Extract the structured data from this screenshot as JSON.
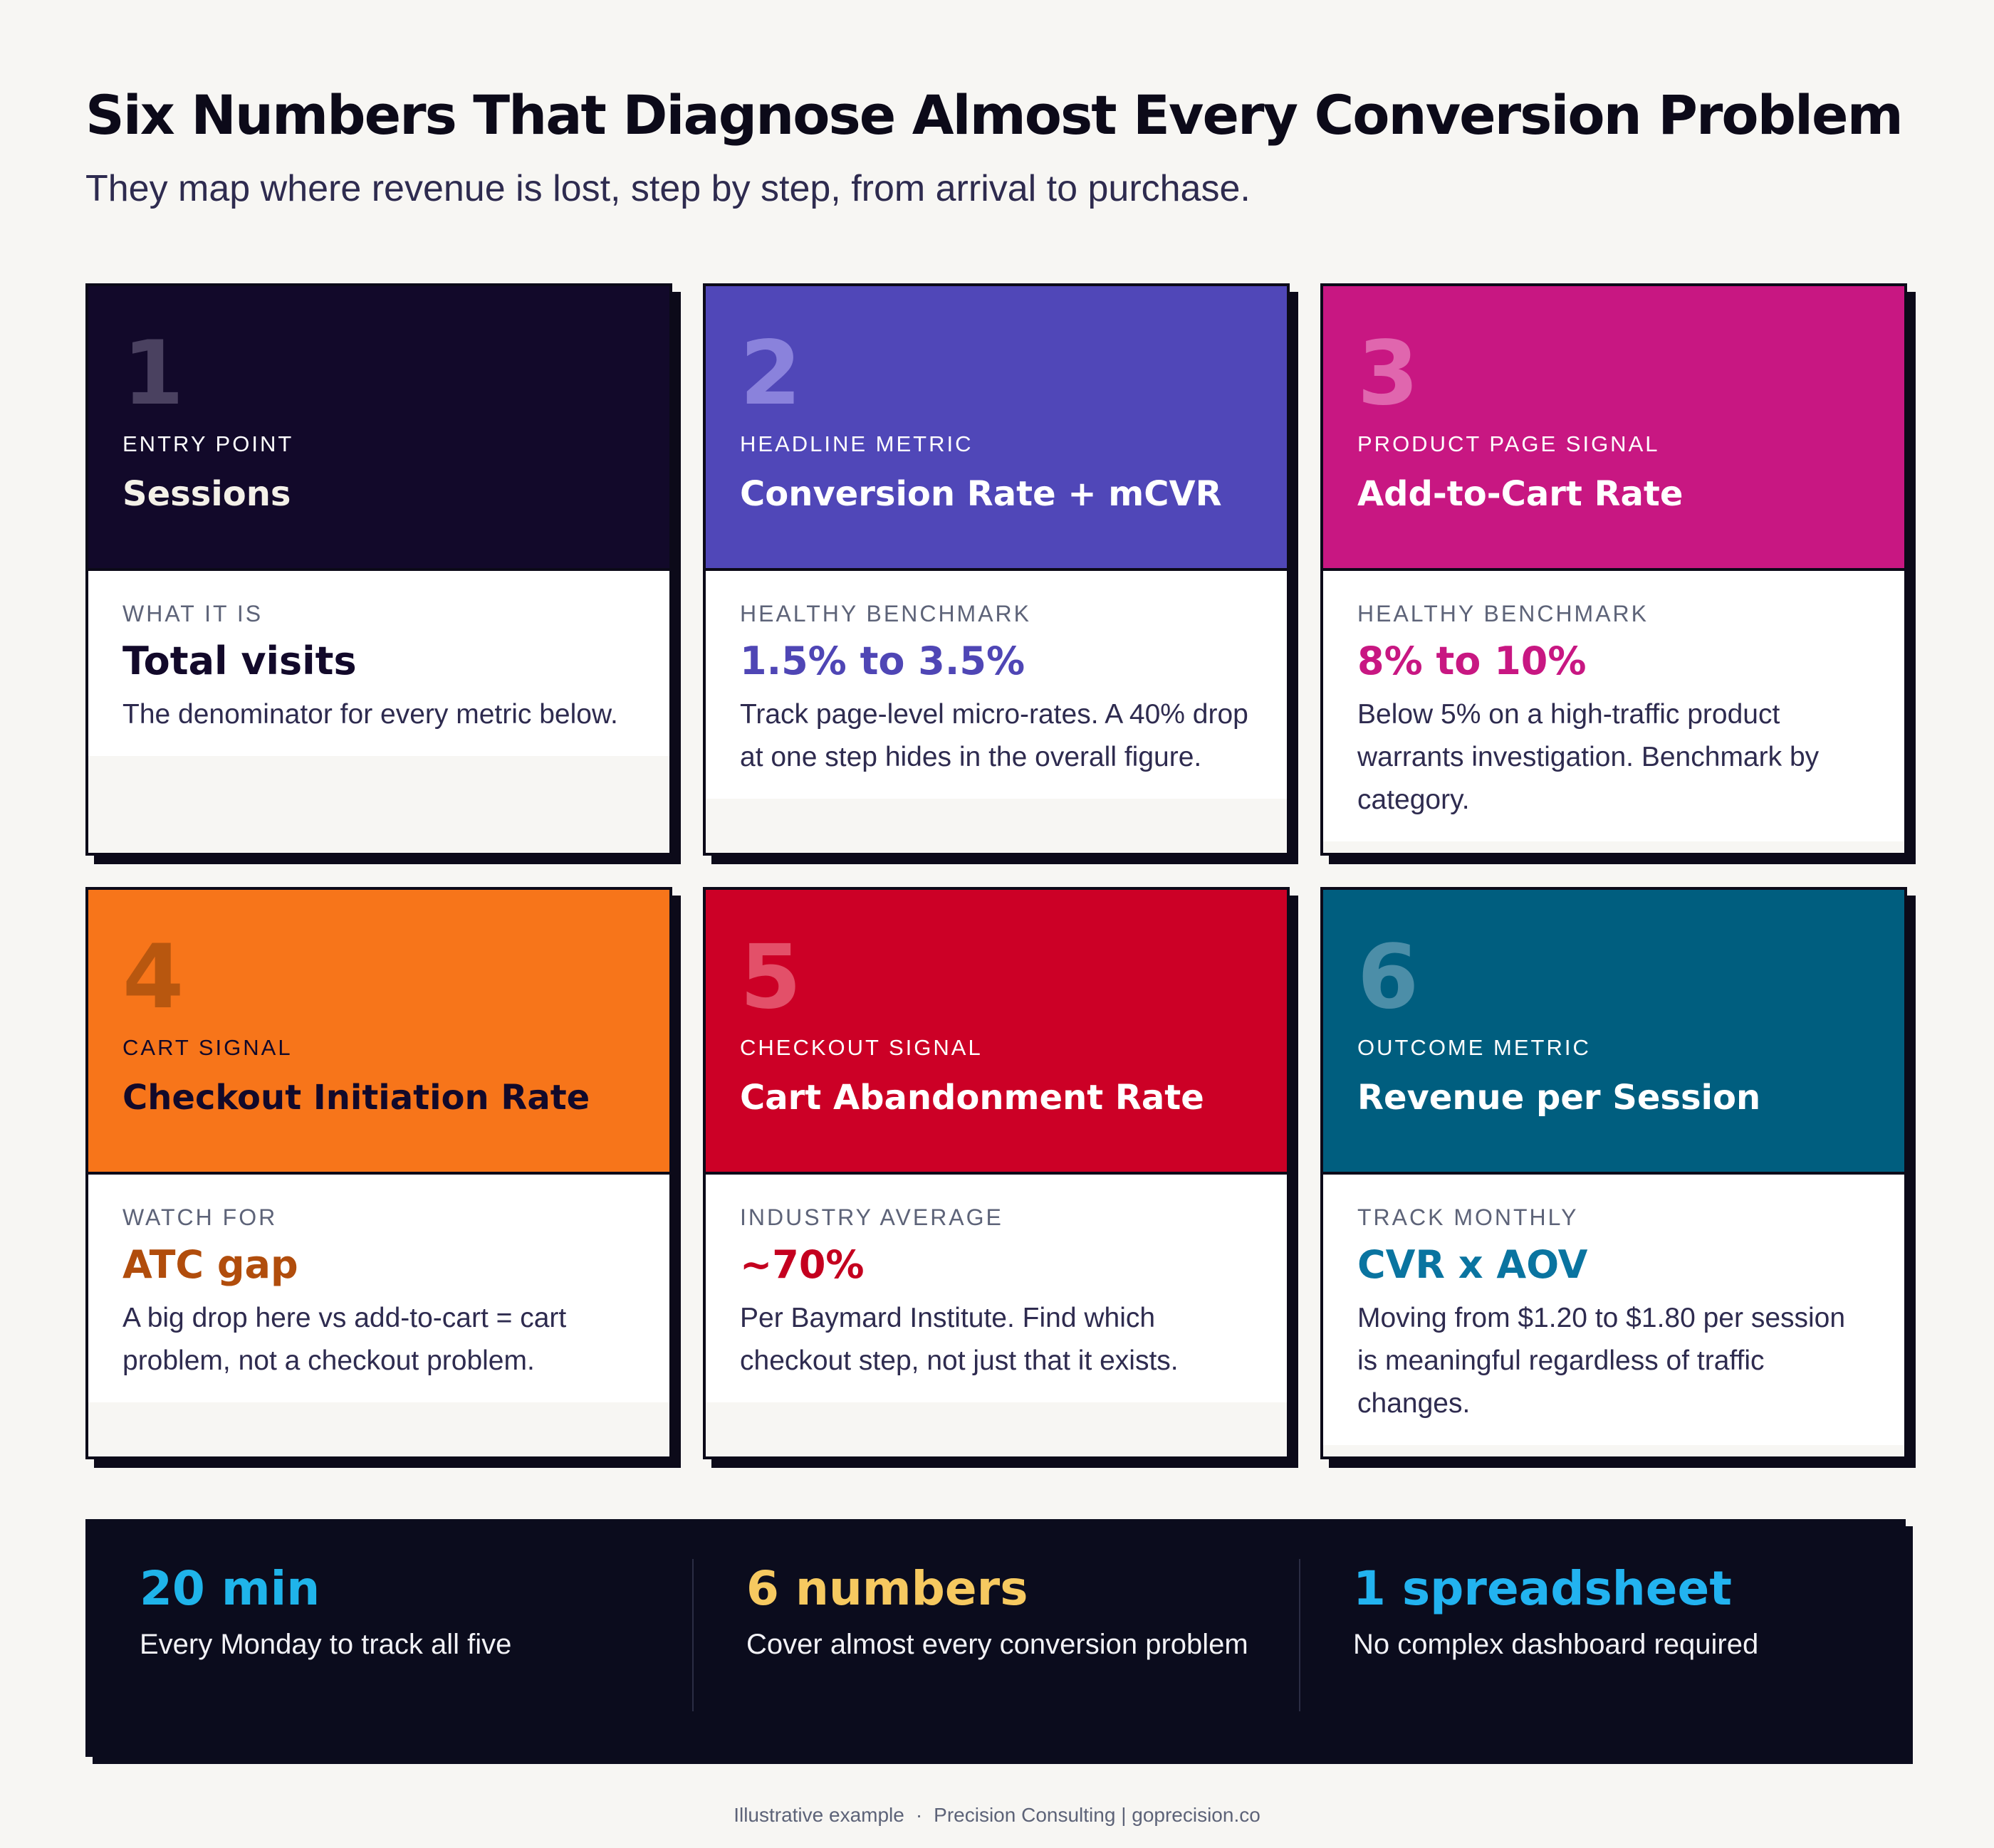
{
  "header": {
    "title": "Six Numbers That Diagnose Almost Every Conversion Problem",
    "subtitle": "They map where revenue is lost, step by step, from arrival to purchase."
  },
  "cards": [
    {
      "number": "1",
      "kicker": "ENTRY POINT",
      "name": "Sessions",
      "label": "WHAT IT IS",
      "value": "Total visits",
      "description": "The denominator for every metric below.",
      "color": "#12092a"
    },
    {
      "number": "2",
      "kicker": "HEADLINE METRIC",
      "name": "Conversion Rate + mCVR",
      "label": "HEALTHY BENCHMARK",
      "value": "1.5% to 3.5%",
      "description": "Track page-level micro-rates. A 40% drop at one step hides in the overall figure.",
      "color": "#5047b8"
    },
    {
      "number": "3",
      "kicker": "PRODUCT PAGE SIGNAL",
      "name": "Add-to-Cart Rate",
      "label": "HEALTHY BENCHMARK",
      "value": "8% to 10%",
      "description": "Below 5% on a high-traffic product warrants investigation. Benchmark by category.",
      "color": "#c81782"
    },
    {
      "number": "4",
      "kicker": "CART SIGNAL",
      "name": "Checkout Initiation Rate",
      "label": "WATCH FOR",
      "value": "ATC gap",
      "description": "A big drop here vs add-to-cart = cart problem, not a checkout problem.",
      "color": "#f7751a"
    },
    {
      "number": "5",
      "kicker": "CHECKOUT SIGNAL",
      "name": "Cart Abandonment Rate",
      "label": "INDUSTRY AVERAGE",
      "value": "~70%",
      "description": "Per Baymard Institute. Find which checkout step, not just that it exists.",
      "color": "#cc0026"
    },
    {
      "number": "6",
      "kicker": "OUTCOME METRIC",
      "name": "Revenue per Session",
      "label": "TRACK MONTHLY",
      "value": "CVR x AOV",
      "description": "Moving from $1.20 to $1.80 per session is meaningful regardless of traffic changes.",
      "color": "#005e7f"
    }
  ],
  "stats": [
    {
      "big": "20 min",
      "description": "Every Monday to track all five",
      "color": "#1fb4ea"
    },
    {
      "big": "6 numbers",
      "description": "Cover almost every conversion problem",
      "color": "#f6c960"
    },
    {
      "big": "1 spreadsheet",
      "description": "No complex dashboard required",
      "color": "#22b3f0"
    }
  ],
  "footer": {
    "note": "Illustrative example",
    "separator": "·",
    "credit": "Precision Consulting | goprecision.co"
  }
}
